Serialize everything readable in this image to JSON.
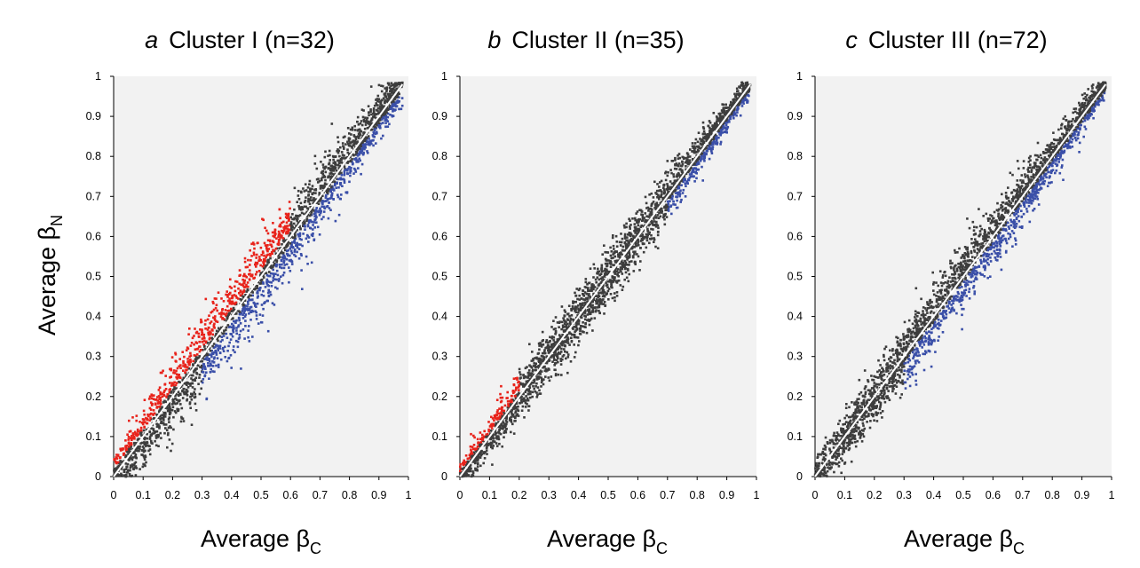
{
  "figure": {
    "ylabel": "Average β",
    "ylabel_sub": "N"
  },
  "colors": {
    "background": "#ffffff",
    "axes_bg": "#f2f2f2",
    "neutral": "#3d3d3d",
    "hyper": "#e8231b",
    "hypo": "#3a4fa8",
    "diagonal": "#ffffff"
  },
  "chart_data": [
    {
      "type": "scatter",
      "panel": "a",
      "title": "Cluster I (n=32)",
      "xlabel": "Average β",
      "xlabel_sub": "C",
      "xlim": [
        0,
        1
      ],
      "ylim": [
        0,
        1
      ],
      "xticks": [
        "0",
        "0.1",
        "0.2",
        "0.3",
        "0.4",
        "0.5",
        "0.6",
        "0.7",
        "0.8",
        "0.9",
        "1"
      ],
      "yticks": [
        "0",
        "0.1",
        "0.2",
        "0.3",
        "0.4",
        "0.5",
        "0.6",
        "0.7",
        "0.8",
        "0.9",
        "1"
      ],
      "diagonal": true,
      "hyper_range": [
        0,
        0.6
      ],
      "hypo_range": [
        0.3,
        1
      ],
      "spread": 0.05,
      "seed": 11
    },
    {
      "type": "scatter",
      "panel": "b",
      "title": "Cluster II (n=35)",
      "xlabel": "Average β",
      "xlabel_sub": "C",
      "xlim": [
        0,
        1
      ],
      "ylim": [
        0,
        1
      ],
      "xticks": [
        "0",
        "0.1",
        "0.2",
        "0.3",
        "0.4",
        "0.5",
        "0.6",
        "0.7",
        "0.8",
        "0.9",
        "1"
      ],
      "yticks": [
        "0",
        "0.1",
        "0.2",
        "0.3",
        "0.4",
        "0.5",
        "0.6",
        "0.7",
        "0.8",
        "0.9",
        "1"
      ],
      "diagonal": true,
      "hyper_range": [
        0,
        0.2
      ],
      "hypo_range": [
        0.7,
        1
      ],
      "spread": 0.035,
      "seed": 23
    },
    {
      "type": "scatter",
      "panel": "c",
      "title": "Cluster III (n=72)",
      "xlabel": "Average β",
      "xlabel_sub": "C",
      "xlim": [
        0,
        1
      ],
      "ylim": [
        0,
        1
      ],
      "xticks": [
        "0",
        "0.1",
        "0.2",
        "0.3",
        "0.4",
        "0.5",
        "0.6",
        "0.7",
        "0.8",
        "0.9",
        "1"
      ],
      "yticks": [
        "0",
        "0.1",
        "0.2",
        "0.3",
        "0.4",
        "0.5",
        "0.6",
        "0.7",
        "0.8",
        "0.9",
        "1"
      ],
      "diagonal": true,
      "hyper_range": null,
      "hypo_range": [
        0.3,
        1
      ],
      "spread": 0.04,
      "seed": 37
    }
  ]
}
